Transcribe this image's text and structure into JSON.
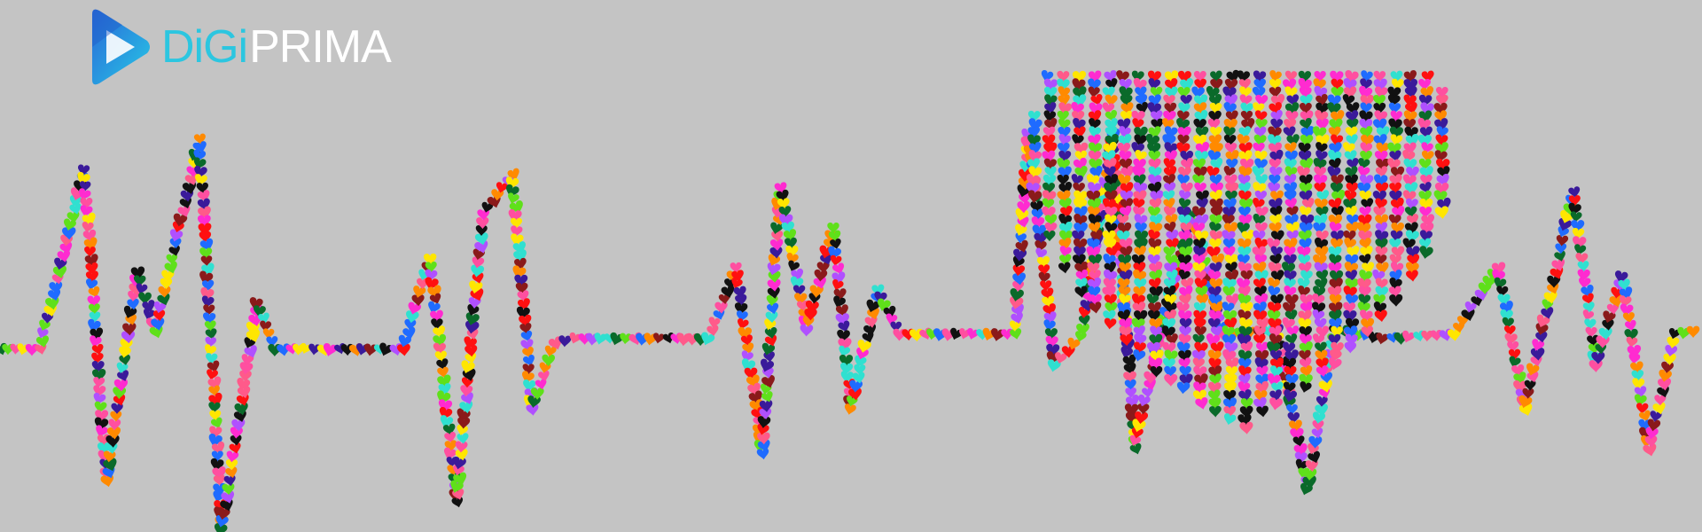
{
  "brand": {
    "name_part_a": "DiGi",
    "name_part_b": "PRIMA",
    "accent_color": "#2cc6e0",
    "text_color": "#ffffff"
  },
  "background_color": "#c4c4c4",
  "artwork": {
    "icon": "heartbeat-of-hearts-illustration",
    "palette": [
      "#ff1010",
      "#ff2bd0",
      "#ff8a00",
      "#ffe600",
      "#1f6bff",
      "#3a1a9a",
      "#5fe01a",
      "#0a6a2a",
      "#111111",
      "#ff5a8a",
      "#30e0d0",
      "#8a1a1a",
      "#ff4fa0",
      "#b050ff"
    ]
  }
}
